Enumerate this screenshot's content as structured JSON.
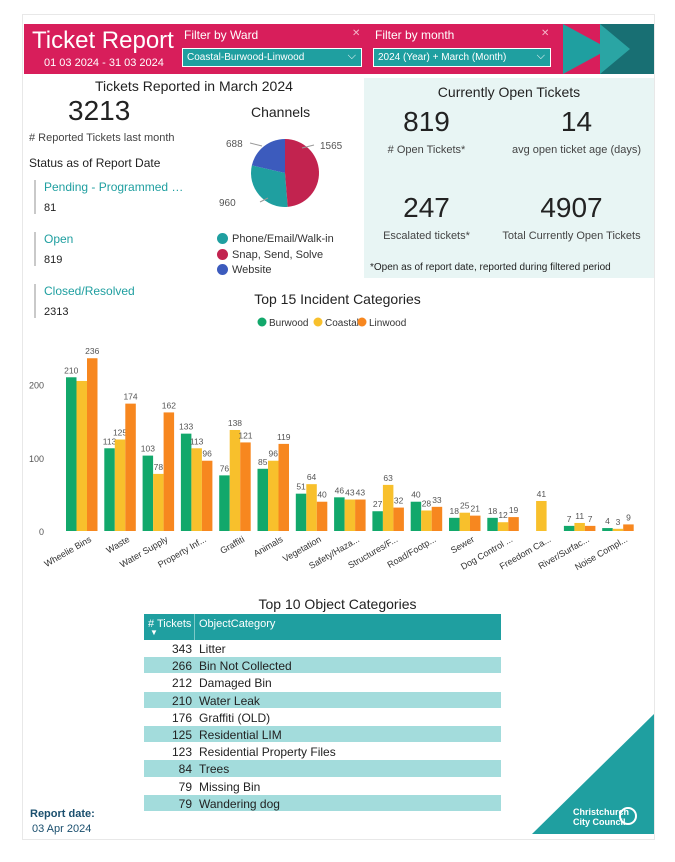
{
  "header": {
    "title": "Ticket Report",
    "date_range": "01 03 2024 - 31 03 2024",
    "ward_filter_label": "Filter by Ward",
    "ward_filter_value": "Coastal-Burwood-Linwood",
    "month_filter_label": "Filter by month",
    "month_filter_value": "2024 (Year) + March (Month)",
    "clear_glyph": "✕",
    "chevron_glyph": "⌵",
    "colors": {
      "brand_pink": "#d81e5b",
      "teal": "#1f9fa0",
      "dark_teal": "#186f73"
    }
  },
  "reported": {
    "title": "Tickets Reported in March 2024",
    "count": "3213",
    "count_caption": "# Reported Tickets last month",
    "status_heading": "Status as of Report Date",
    "statuses": [
      {
        "label": "Pending - Programmed …",
        "value": "81"
      },
      {
        "label": "Open",
        "value": "819"
      },
      {
        "label": "Closed/Resolved",
        "value": "2313"
      }
    ]
  },
  "channels": {
    "title": "Channels",
    "slices": [
      {
        "label": "Phone/Email/Walk-in",
        "value": 960,
        "color": "#1f9fa0"
      },
      {
        "label": "Snap, Send, Solve",
        "value": 1565,
        "color": "#c2234f"
      },
      {
        "label": "Website",
        "value": 688,
        "color": "#3c5bbd"
      }
    ],
    "value_labels": {
      "phone": "960",
      "snap": "1565",
      "web": "688"
    }
  },
  "open_tickets": {
    "title": "Currently Open Tickets",
    "open_count": "819",
    "open_caption": "# Open Tickets*",
    "avg_age": "14",
    "avg_age_caption": "avg open ticket age (days)",
    "escalated": "247",
    "escalated_caption": "Escalated tickets*",
    "total_open": "4907",
    "total_open_caption": "Total Currently Open Tickets",
    "footnote": "*Open as of report date, reported during filtered period"
  },
  "chart_data": {
    "type": "bar",
    "title": "Top 15 Incident Categories",
    "categories": [
      "Wheelie Bins",
      "Waste",
      "Water Supply",
      "Property Inf...",
      "Graffiti",
      "Animals",
      "Vegetation",
      "Safety/Haza...",
      "Structures/F...",
      "Road/Footp...",
      "Sewer",
      "Dog Control ...",
      "Freedom Ca...",
      "River/Surfac...",
      "Noise Compl..."
    ],
    "series": [
      {
        "name": "Burwood",
        "color": "#12a86b",
        "values": [
          210,
          113,
          103,
          133,
          76,
          85,
          51,
          46,
          27,
          40,
          18,
          18,
          null,
          7,
          4
        ]
      },
      {
        "name": "Coastal",
        "color": "#f8c02c",
        "values": [
          null,
          125,
          78,
          113,
          138,
          96,
          64,
          43,
          63,
          28,
          25,
          12,
          41,
          11,
          3
        ]
      },
      {
        "name": "Linwood",
        "color": "#f7871f",
        "values": [
          236,
          174,
          162,
          96,
          121,
          119,
          40,
          43,
          32,
          33,
          21,
          19,
          null,
          7,
          9
        ]
      }
    ],
    "hidden_value_note": "Coastal Wheelie Bins bar shown without label",
    "coastal_wheelie_estimate": 205,
    "yticks": [
      0,
      100,
      200
    ],
    "ylim": [
      0,
      250
    ],
    "grid": false,
    "legend": "top-center"
  },
  "table": {
    "title": "Top 10 Object Categories",
    "col_tickets": "# Tickets",
    "col_category": "ObjectCategory",
    "sort_glyph": "▼",
    "rows": [
      {
        "tickets": "343",
        "category": "Litter"
      },
      {
        "tickets": "266",
        "category": "Bin Not Collected"
      },
      {
        "tickets": "212",
        "category": "Damaged Bin"
      },
      {
        "tickets": "210",
        "category": "Water Leak"
      },
      {
        "tickets": "176",
        "category": "Graffiti (OLD)"
      },
      {
        "tickets": "125",
        "category": "Residential LIM"
      },
      {
        "tickets": "123",
        "category": "Residential Property Files"
      },
      {
        "tickets": "84",
        "category": "Trees"
      },
      {
        "tickets": "79",
        "category": "Missing Bin"
      },
      {
        "tickets": "79",
        "category": "Wandering dog"
      }
    ]
  },
  "footer": {
    "report_date_label": "Report date:",
    "report_date_value": "03 Apr 2024",
    "logo_line1": "Christchurch",
    "logo_line2": "City Council"
  }
}
